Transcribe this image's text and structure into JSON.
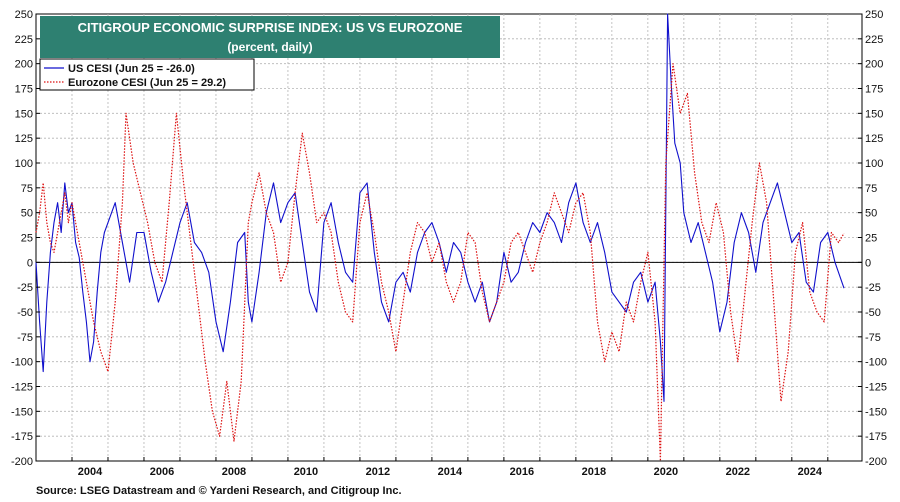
{
  "chart_data": {
    "type": "line",
    "title": "CITIGROUP ECONOMIC SURPRISE INDEX: US VS EUROZONE",
    "subtitle": "(percent, daily)",
    "xlabel": "",
    "ylabel": "",
    "xlim": [
      2003.0,
      2025.95
    ],
    "ylim": [
      -200,
      250
    ],
    "y_ticks": [
      250,
      225,
      200,
      175,
      150,
      125,
      100,
      75,
      50,
      25,
      0,
      -25,
      -50,
      -75,
      -100,
      -125,
      -150,
      -175,
      -200
    ],
    "x_ticks": [
      "2004",
      "2006",
      "2008",
      "2010",
      "2012",
      "2014",
      "2016",
      "2018",
      "2020",
      "2022",
      "2024"
    ],
    "grid": true,
    "legend_position": "top-left",
    "series": [
      {
        "name": "US CESI (Jun 25 = -26.0)",
        "color": "#1010cc",
        "style": "solid",
        "x": [
          2003.0,
          2003.1,
          2003.2,
          2003.3,
          2003.4,
          2003.5,
          2003.6,
          2003.7,
          2003.8,
          2003.9,
          2004.0,
          2004.1,
          2004.2,
          2004.3,
          2004.4,
          2004.5,
          2004.6,
          2004.7,
          2004.8,
          2004.9,
          2005.0,
          2005.2,
          2005.4,
          2005.6,
          2005.8,
          2006.0,
          2006.2,
          2006.4,
          2006.6,
          2006.8,
          2007.0,
          2007.2,
          2007.4,
          2007.6,
          2007.8,
          2008.0,
          2008.2,
          2008.4,
          2008.6,
          2008.8,
          2008.9,
          2009.0,
          2009.2,
          2009.4,
          2009.6,
          2009.8,
          2010.0,
          2010.2,
          2010.4,
          2010.6,
          2010.8,
          2011.0,
          2011.2,
          2011.4,
          2011.6,
          2011.8,
          2012.0,
          2012.2,
          2012.4,
          2012.6,
          2012.8,
          2013.0,
          2013.2,
          2013.4,
          2013.6,
          2013.8,
          2014.0,
          2014.2,
          2014.4,
          2014.6,
          2014.8,
          2015.0,
          2015.2,
          2015.4,
          2015.6,
          2015.8,
          2016.0,
          2016.2,
          2016.4,
          2016.6,
          2016.8,
          2017.0,
          2017.2,
          2017.4,
          2017.6,
          2017.8,
          2018.0,
          2018.2,
          2018.4,
          2018.6,
          2018.8,
          2019.0,
          2019.2,
          2019.4,
          2019.6,
          2019.8,
          2020.0,
          2020.2,
          2020.35,
          2020.45,
          2020.55,
          2020.65,
          2020.75,
          2020.9,
          2021.0,
          2021.2,
          2021.4,
          2021.6,
          2021.8,
          2022.0,
          2022.2,
          2022.4,
          2022.6,
          2022.8,
          2023.0,
          2023.2,
          2023.4,
          2023.6,
          2023.8,
          2024.0,
          2024.2,
          2024.4,
          2024.6,
          2024.8,
          2025.0,
          2025.2,
          2025.45
        ],
        "y": [
          0,
          -60,
          -110,
          -40,
          10,
          40,
          60,
          30,
          80,
          50,
          60,
          20,
          5,
          -30,
          -60,
          -100,
          -80,
          -30,
          10,
          30,
          40,
          60,
          20,
          -20,
          30,
          30,
          -10,
          -40,
          -20,
          10,
          40,
          60,
          20,
          10,
          -10,
          -60,
          -90,
          -40,
          20,
          30,
          -40,
          -60,
          -10,
          50,
          80,
          40,
          60,
          70,
          20,
          -30,
          -50,
          40,
          60,
          20,
          -10,
          -20,
          70,
          80,
          10,
          -40,
          -60,
          -20,
          -10,
          -30,
          10,
          30,
          40,
          20,
          -10,
          20,
          10,
          -20,
          -40,
          -20,
          -60,
          -40,
          10,
          -20,
          -10,
          20,
          40,
          30,
          50,
          40,
          20,
          60,
          80,
          40,
          20,
          40,
          10,
          -30,
          -40,
          -50,
          -20,
          -10,
          -40,
          -20,
          -80,
          -140,
          250,
          180,
          120,
          100,
          50,
          20,
          40,
          10,
          -20,
          -70,
          -40,
          20,
          50,
          30,
          -10,
          40,
          60,
          80,
          50,
          20,
          30,
          -20,
          -30,
          20,
          30,
          0,
          -26
        ]
      },
      {
        "name": "Eurozone CESI (Jun 25 = 29.2)",
        "color": "#dd1111",
        "style": "dotted",
        "x": [
          2003.0,
          2003.1,
          2003.2,
          2003.3,
          2003.4,
          2003.5,
          2003.6,
          2003.7,
          2003.8,
          2003.9,
          2004.0,
          2004.2,
          2004.4,
          2004.6,
          2004.8,
          2005.0,
          2005.2,
          2005.4,
          2005.5,
          2005.7,
          2005.9,
          2006.1,
          2006.3,
          2006.5,
          2006.7,
          2006.9,
          2007.1,
          2007.3,
          2007.5,
          2007.7,
          2007.9,
          2008.1,
          2008.3,
          2008.5,
          2008.7,
          2008.9,
          2009.0,
          2009.2,
          2009.4,
          2009.6,
          2009.8,
          2010.0,
          2010.2,
          2010.4,
          2010.6,
          2010.8,
          2011.0,
          2011.2,
          2011.4,
          2011.6,
          2011.8,
          2012.0,
          2012.2,
          2012.4,
          2012.6,
          2012.8,
          2013.0,
          2013.2,
          2013.4,
          2013.6,
          2013.8,
          2014.0,
          2014.2,
          2014.4,
          2014.6,
          2014.8,
          2015.0,
          2015.2,
          2015.4,
          2015.6,
          2015.8,
          2016.0,
          2016.2,
          2016.4,
          2016.6,
          2016.8,
          2017.0,
          2017.2,
          2017.4,
          2017.6,
          2017.8,
          2018.0,
          2018.2,
          2018.4,
          2018.6,
          2018.8,
          2019.0,
          2019.2,
          2019.4,
          2019.6,
          2019.8,
          2020.0,
          2020.2,
          2020.35,
          2020.5,
          2020.7,
          2020.9,
          2021.1,
          2021.3,
          2021.5,
          2021.7,
          2021.9,
          2022.1,
          2022.3,
          2022.5,
          2022.7,
          2022.9,
          2023.1,
          2023.3,
          2023.5,
          2023.7,
          2023.9,
          2024.1,
          2024.3,
          2024.5,
          2024.7,
          2024.9,
          2025.1,
          2025.3,
          2025.45
        ],
        "y": [
          30,
          50,
          80,
          40,
          20,
          10,
          30,
          50,
          70,
          40,
          60,
          20,
          -20,
          -60,
          -90,
          -110,
          -40,
          60,
          150,
          100,
          70,
          40,
          0,
          -20,
          60,
          150,
          80,
          20,
          -40,
          -100,
          -150,
          -175,
          -120,
          -180,
          -120,
          40,
          60,
          90,
          50,
          30,
          -20,
          0,
          70,
          130,
          90,
          40,
          50,
          30,
          -20,
          -50,
          -60,
          40,
          70,
          30,
          -20,
          -50,
          -90,
          -40,
          10,
          40,
          30,
          0,
          20,
          -20,
          -40,
          -20,
          30,
          20,
          -30,
          -60,
          -40,
          -20,
          20,
          30,
          10,
          -10,
          20,
          40,
          70,
          50,
          30,
          60,
          70,
          30,
          -60,
          -100,
          -70,
          -90,
          -40,
          -60,
          -20,
          10,
          -60,
          -200,
          100,
          200,
          150,
          170,
          90,
          40,
          20,
          60,
          30,
          -50,
          -100,
          -30,
          40,
          100,
          60,
          -40,
          -140,
          -90,
          10,
          40,
          -30,
          -50,
          -60,
          30,
          20,
          29.2
        ]
      }
    ]
  },
  "source": "Source: LSEG Datastream and © Yardeni Research, and Citigroup Inc."
}
